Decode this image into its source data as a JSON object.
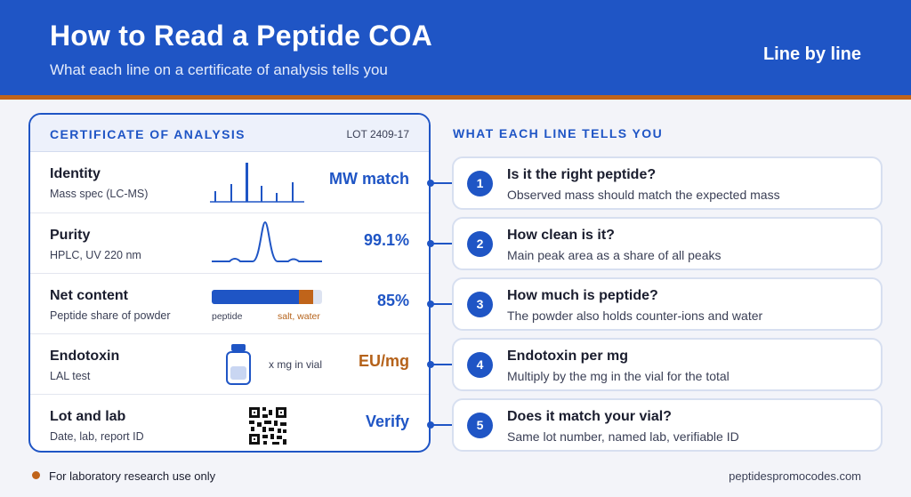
{
  "header": {
    "title": "How to Read a Peptide COA",
    "subtitle": "What each line on a certificate of analysis tells you",
    "tagline": "Line by line"
  },
  "certificate": {
    "title": "CERTIFICATE OF ANALYSIS",
    "lot": "LOT 2409-17",
    "rows": [
      {
        "label": "Identity",
        "sub": "Mass spec (LC-MS)",
        "value": "MW match",
        "graphic": "mass-spectrum-icon"
      },
      {
        "label": "Purity",
        "sub": "HPLC, UV 220 nm",
        "value": "99.1%",
        "graphic": "hplc-chromatogram-icon"
      },
      {
        "label": "Net content",
        "sub": "Peptide share of powder",
        "value": "85%",
        "graphic": "content-bar",
        "bar": {
          "peptide_fraction": 0.79,
          "salt_water_fraction": 0.13,
          "peptide_label": "peptide",
          "salt_label": "salt, water"
        }
      },
      {
        "label": "Endotoxin",
        "sub": "LAL test",
        "value": "EU/mg",
        "graphic": "vial-icon",
        "note": "x mg in vial"
      },
      {
        "label": "Lot and lab",
        "sub": "Date, lab, report ID",
        "value": "Verify",
        "graphic": "qr-code-icon"
      }
    ]
  },
  "explanations": {
    "title": "WHAT EACH LINE TELLS YOU",
    "items": [
      {
        "number": "1",
        "question": "Is it the right peptide?",
        "answer": "Observed mass should match the expected mass"
      },
      {
        "number": "2",
        "question": "How clean is it?",
        "answer": "Main peak area as a share of all peaks"
      },
      {
        "number": "3",
        "question": "How much is peptide?",
        "answer": "The powder also holds counter-ions and water"
      },
      {
        "number": "4",
        "question": "Endotoxin per mg",
        "answer": "Multiply by the mg in the vial for the total"
      },
      {
        "number": "5",
        "question": "Does it match your vial?",
        "answer": "Same lot number, named lab, verifiable ID"
      }
    ]
  },
  "footer": {
    "disclaimer": "For laboratory research use only",
    "site": "peptidespromocodes.com"
  },
  "colors": {
    "primary": "#1F55C5",
    "accent": "#C0641A",
    "background": "#F3F4F9"
  }
}
